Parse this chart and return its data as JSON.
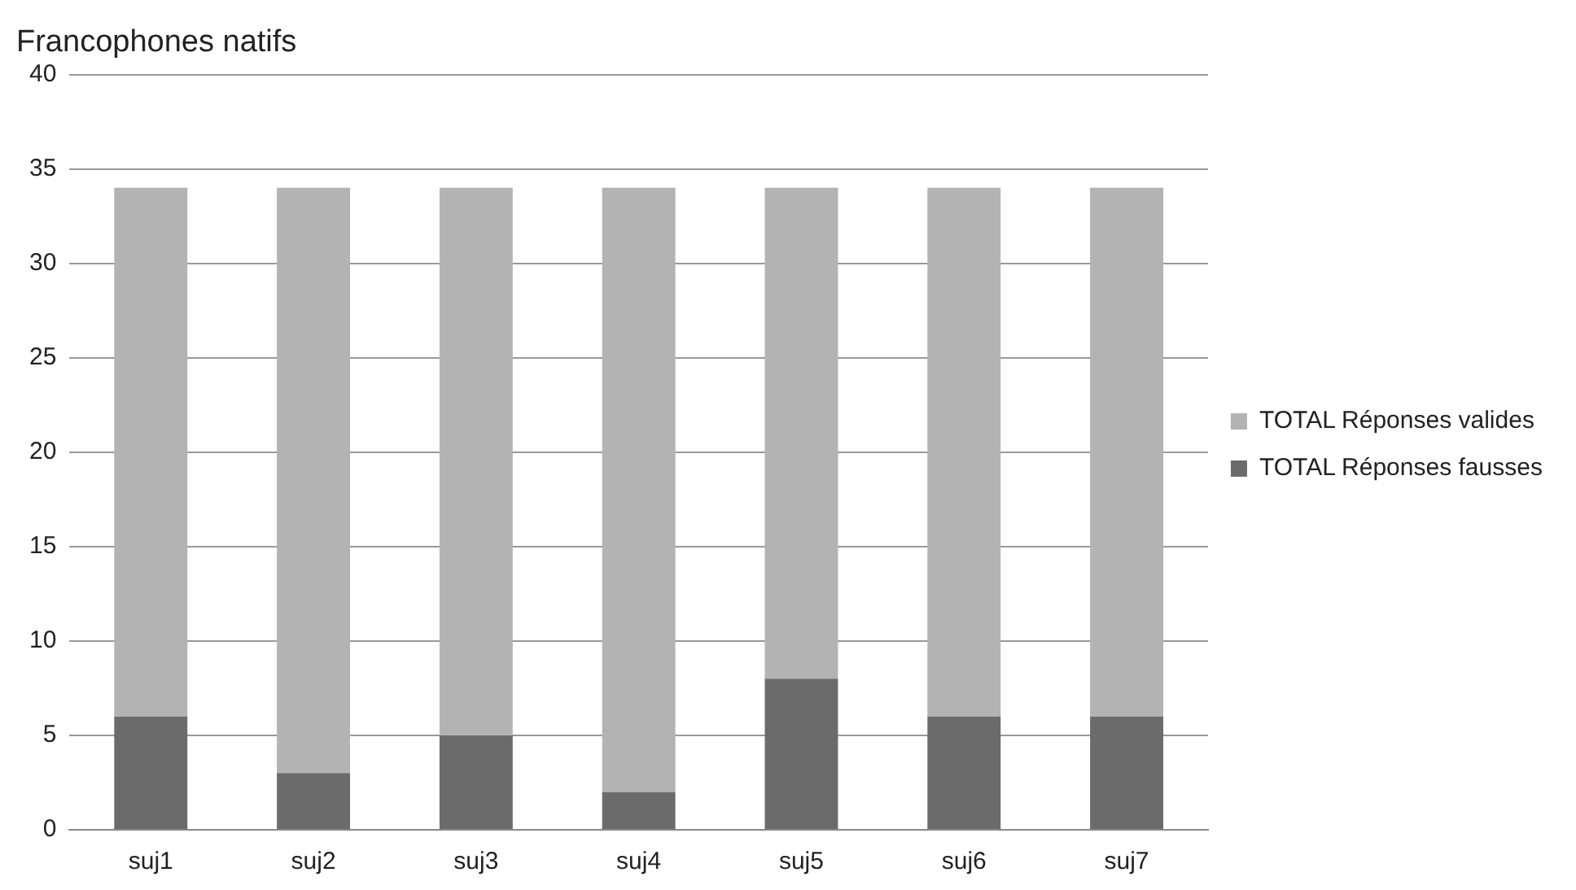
{
  "chart_data": {
    "type": "bar",
    "title": "Francophones natifs",
    "categories": [
      "suj1",
      "suj2",
      "suj3",
      "suj4",
      "suj5",
      "suj6",
      "suj7"
    ],
    "stacked": true,
    "series": [
      {
        "name": "TOTAL Réponses fausses",
        "color": "#6b6b6b",
        "values": [
          6,
          3,
          5,
          2,
          8,
          6,
          6
        ]
      },
      {
        "name": "TOTAL Réponses valides",
        "color": "#b3b3b3",
        "values": [
          28,
          31,
          29,
          32,
          26,
          28,
          28
        ]
      }
    ],
    "ylim": [
      0,
      40
    ],
    "yticks": [
      0,
      5,
      10,
      15,
      20,
      25,
      30,
      35,
      40
    ],
    "grid": "y",
    "legend": "right"
  }
}
